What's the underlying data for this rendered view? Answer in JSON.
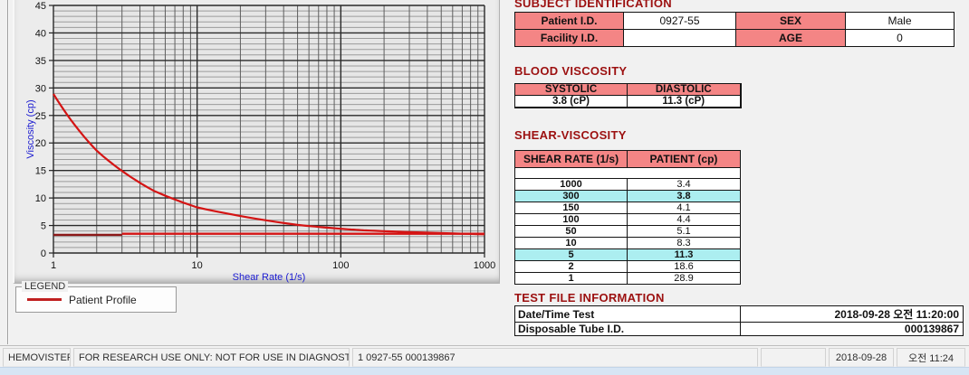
{
  "colors": {
    "accent_pink": "#f48585",
    "highlight_cyan": "#aceef0",
    "title_red": "#9c1010",
    "curve_red": "#d41414",
    "axis_blue": "#1b1bd1"
  },
  "chart_data": {
    "type": "line",
    "title": "",
    "xlabel": "Shear Rate (1/s)",
    "ylabel": "Viscosity (cp)",
    "x_scale": "log",
    "xlim": [
      1,
      1000
    ],
    "ylim": [
      0,
      45
    ],
    "x_ticks": [
      "1",
      "10",
      "100",
      "1000"
    ],
    "y_ticks": [
      0,
      5,
      10,
      15,
      20,
      25,
      30,
      35,
      40,
      45
    ],
    "y_minor_step": 1,
    "grid": true,
    "legend_position": "below-left",
    "series": [
      {
        "name": "Patient Profile",
        "color": "#d41414",
        "points": [
          [
            1,
            28.9
          ],
          [
            2,
            18.6
          ],
          [
            5,
            11.3
          ],
          [
            10,
            8.3
          ],
          [
            50,
            5.1
          ],
          [
            100,
            4.4
          ],
          [
            150,
            4.1
          ],
          [
            300,
            3.8
          ],
          [
            1000,
            3.4
          ]
        ]
      }
    ],
    "reference_lines": [
      {
        "from_x": 1,
        "to_x": 3,
        "value": 3.3,
        "color": "#8c1818"
      },
      {
        "from_x": 3,
        "to_x": 1000,
        "value": 3.5,
        "color": "#d41414"
      }
    ]
  },
  "legend": {
    "box_label": "LEGEND",
    "entries": [
      {
        "label": "Patient Profile",
        "color": "#c02020"
      }
    ]
  },
  "sections": {
    "subject": {
      "title": "SUBJECT IDENTIFICATION",
      "rows": [
        {
          "label1": "Patient I.D.",
          "value1": "0927-55",
          "label2": "SEX",
          "value2": "Male"
        },
        {
          "label1": "Facility I.D.",
          "value1": "",
          "label2": "AGE",
          "value2": "0"
        }
      ]
    },
    "blood_viscosity": {
      "title": "BLOOD VISCOSITY",
      "headers": [
        "SYSTOLIC",
        "DIASTOLIC"
      ],
      "values": [
        "3.8 (cP)",
        "11.3 (cP)"
      ]
    },
    "shear_viscosity": {
      "title": "SHEAR-VISCOSITY",
      "headers": [
        "SHEAR RATE (1/s)",
        "PATIENT (cp)"
      ],
      "rows": [
        {
          "shear_rate": "1000",
          "patient": "3.4",
          "highlight": false
        },
        {
          "shear_rate": "300",
          "patient": "3.8",
          "highlight": true
        },
        {
          "shear_rate": "150",
          "patient": "4.1",
          "highlight": false
        },
        {
          "shear_rate": "100",
          "patient": "4.4",
          "highlight": false
        },
        {
          "shear_rate": "50",
          "patient": "5.1",
          "highlight": false
        },
        {
          "shear_rate": "10",
          "patient": "8.3",
          "highlight": false
        },
        {
          "shear_rate": "5",
          "patient": "11.3",
          "highlight": true
        },
        {
          "shear_rate": "2",
          "patient": "18.6",
          "highlight": false
        },
        {
          "shear_rate": "1",
          "patient": "28.9",
          "highlight": false
        }
      ]
    },
    "test_file": {
      "title": "TEST FILE INFORMATION",
      "rows": [
        {
          "label": "Date/Time Test",
          "value": "2018-09-28  오전 11:20:00"
        },
        {
          "label": "Disposable Tube I.D.",
          "value": "000139867"
        }
      ]
    }
  },
  "statusbar": {
    "app_name": "HEMOVISTER",
    "notice": "FOR RESEARCH USE ONLY: NOT FOR USE IN DIAGNOSTIC PROCEDURES",
    "record": "1  0927-55  000139867",
    "blank": "",
    "date": "2018-09-28",
    "time": "오전 11:24"
  }
}
